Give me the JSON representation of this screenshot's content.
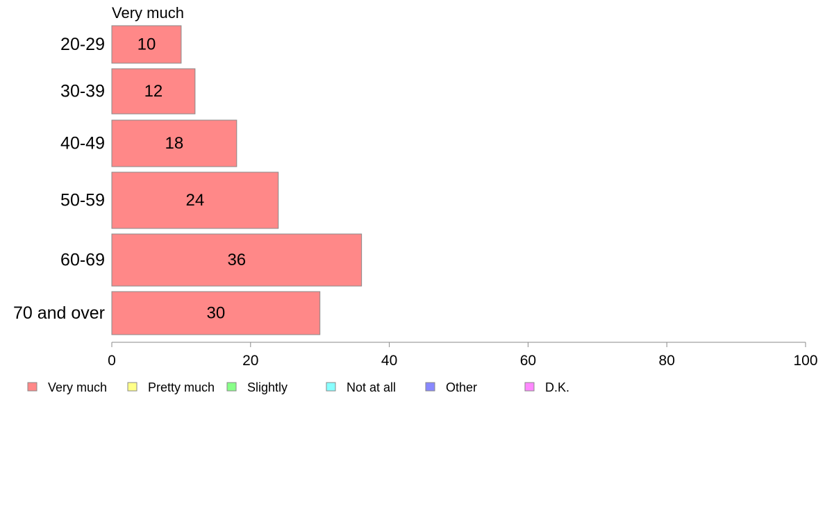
{
  "chart_data": {
    "type": "bar",
    "orientation": "horizontal",
    "series_title": "Very much",
    "categories": [
      "20-29",
      "30-39",
      "40-49",
      "50-59",
      "60-69",
      "70 and over"
    ],
    "values": [
      10,
      12,
      18,
      24,
      36,
      30
    ],
    "x_ticks": [
      "0",
      "20",
      "40",
      "60",
      "80",
      "100"
    ],
    "xlim": [
      0,
      100
    ],
    "grid": false,
    "bar_color": "#ff8888",
    "bar_border_color": "#888888",
    "legend": {
      "placement": "bottom",
      "items": [
        {
          "label": "Very much",
          "color": "#ff8888"
        },
        {
          "label": "Pretty much",
          "color": "#ffff88"
        },
        {
          "label": "Slightly",
          "color": "#88ff88"
        },
        {
          "label": "Not at all",
          "color": "#88ffff"
        },
        {
          "label": "Other",
          "color": "#8888ff"
        },
        {
          "label": "D.K.",
          "color": "#ff88ff"
        }
      ]
    }
  }
}
